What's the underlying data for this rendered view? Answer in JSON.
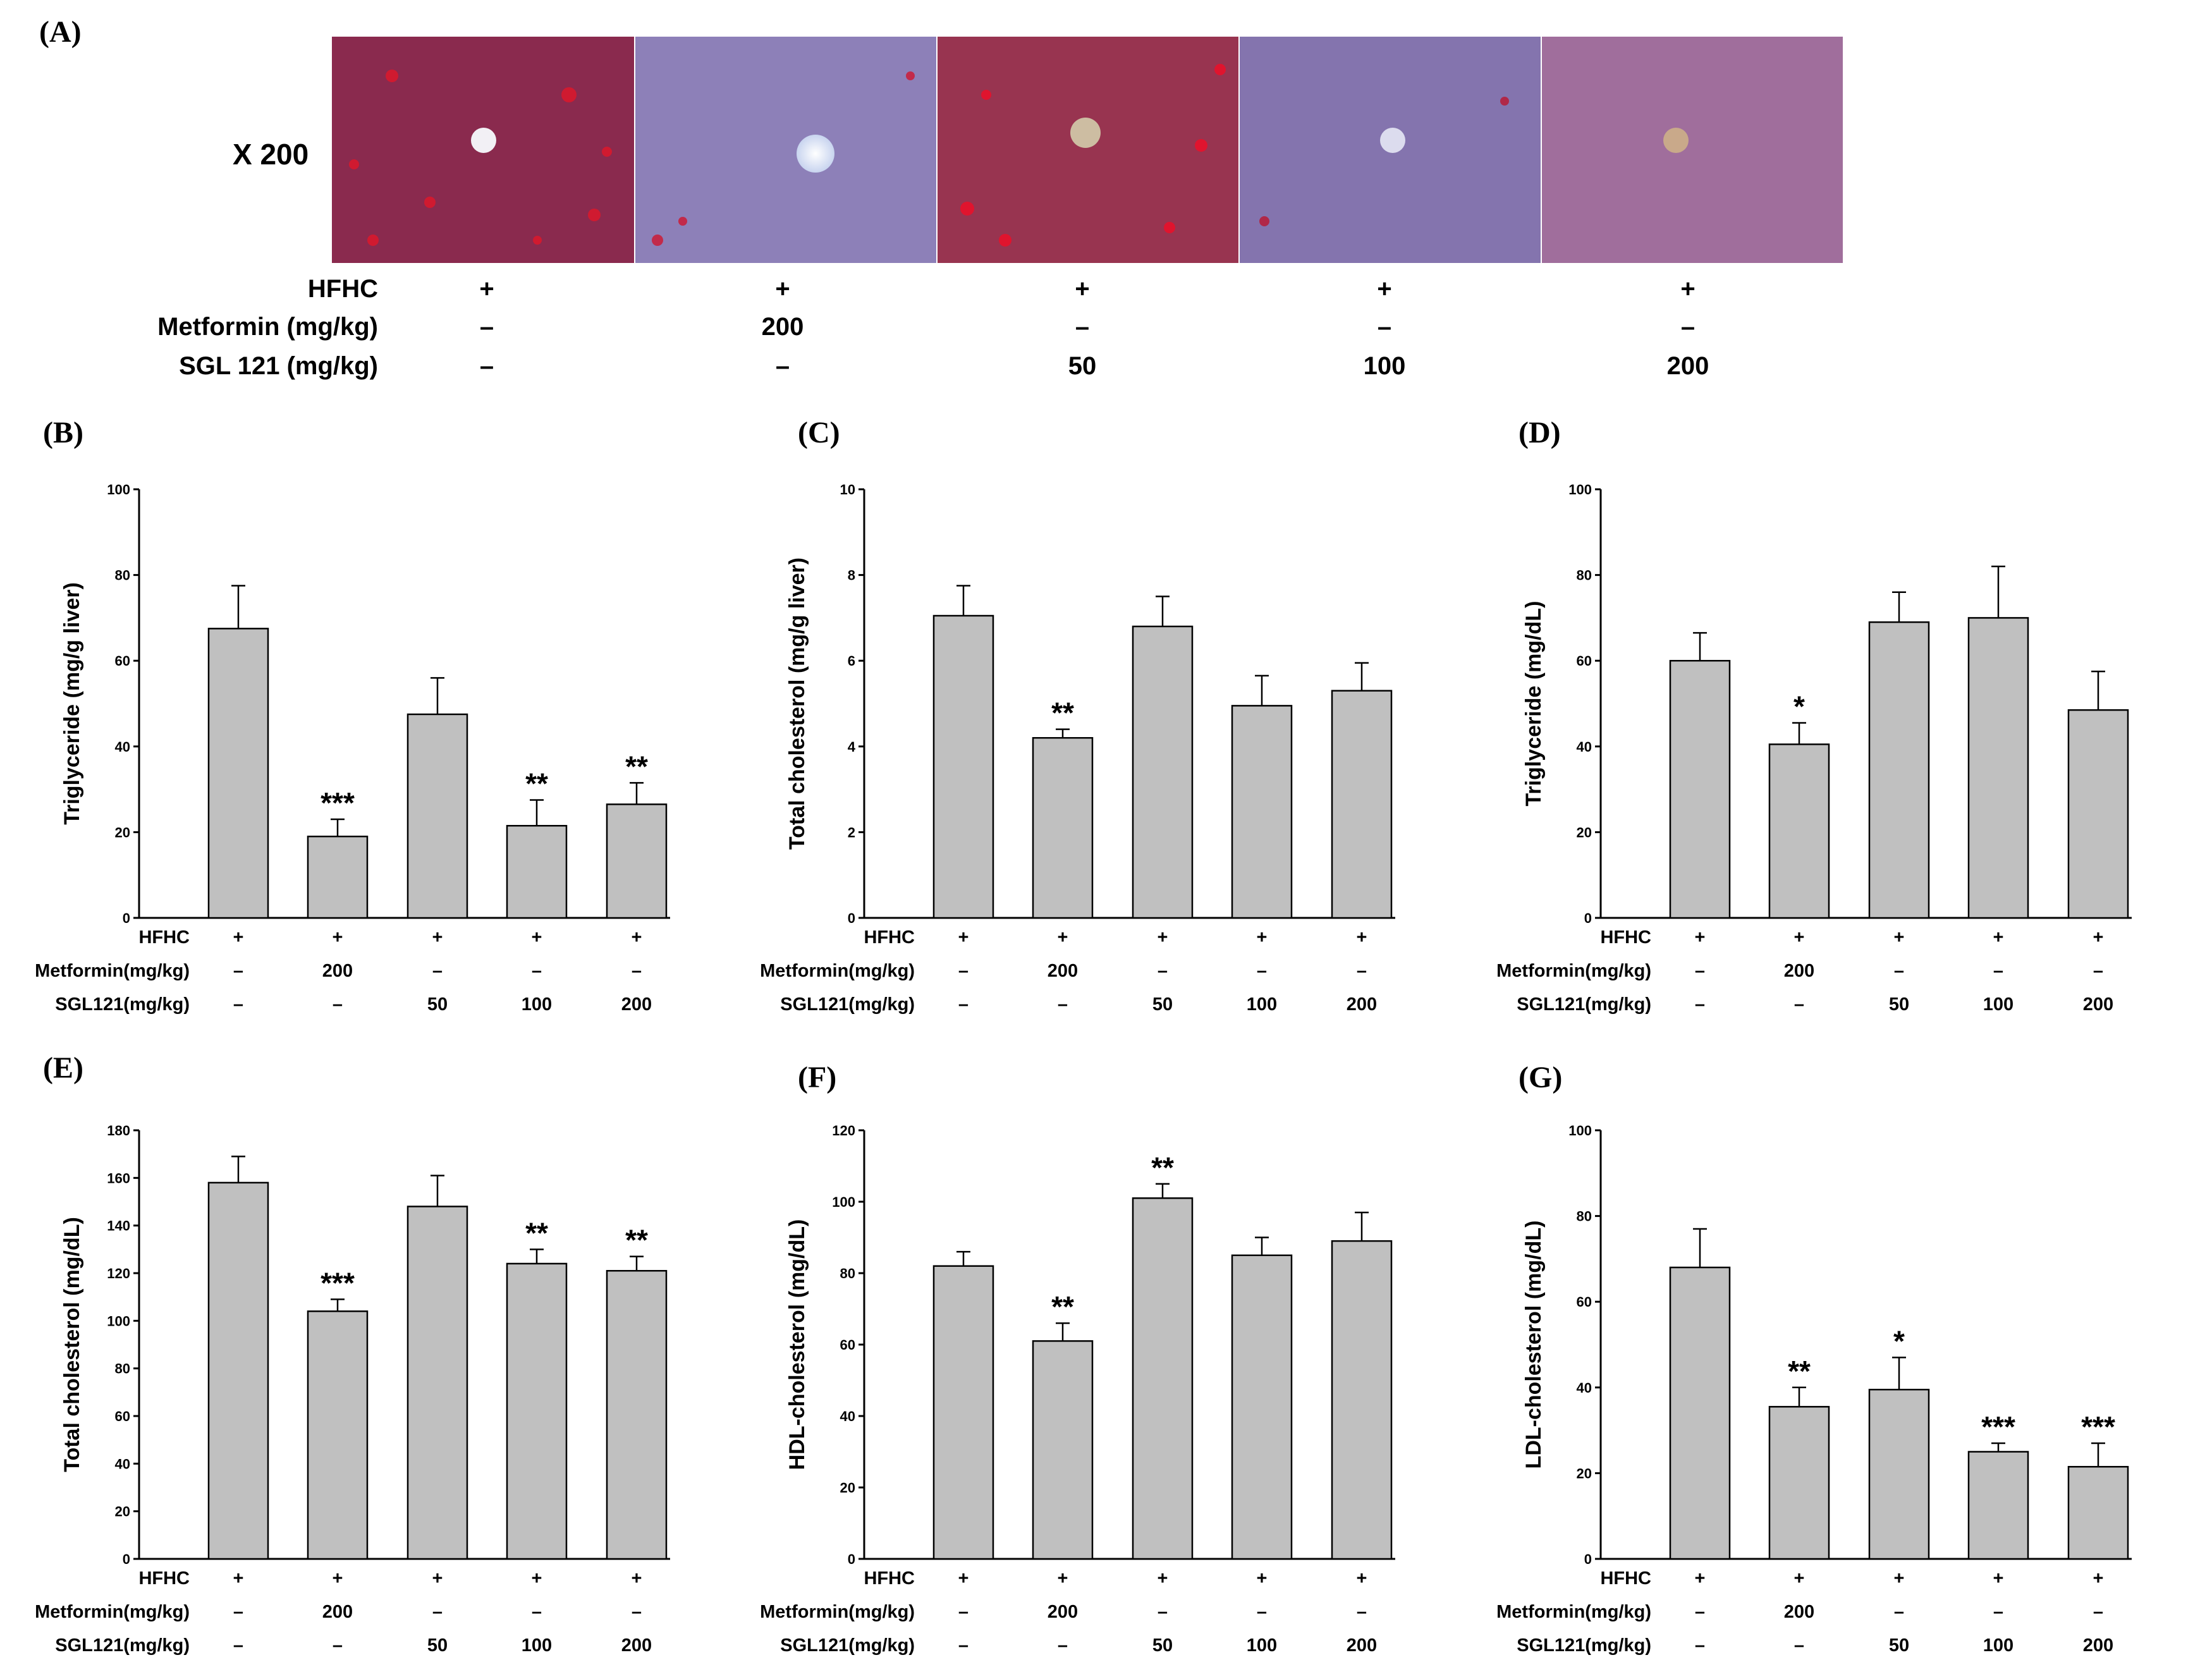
{
  "panel_a": {
    "letter": "(A)",
    "magnification": "X 200",
    "micrograph_count": 5,
    "rows": [
      {
        "label": "HFHC",
        "values": [
          "+",
          "+",
          "+",
          "+",
          "+"
        ]
      },
      {
        "label": "Metformin  (mg/kg)",
        "values": [
          "–",
          "200",
          "–",
          "–",
          "–"
        ]
      },
      {
        "label": "SGL 121  (mg/kg)",
        "values": [
          "–",
          "–",
          "50",
          "100",
          "200"
        ]
      }
    ]
  },
  "treatment_rows": [
    {
      "label": "HFHC",
      "values": [
        "+",
        "+",
        "+",
        "+",
        "+"
      ]
    },
    {
      "label": "Metformin(mg/kg)",
      "values": [
        "–",
        "200",
        "–",
        "–",
        "–"
      ]
    },
    {
      "label": "SGL121(mg/kg)",
      "values": [
        "–",
        "–",
        "50",
        "100",
        "200"
      ]
    }
  ],
  "colors": {
    "bar": "#c0c0c0",
    "bar_stroke": "#000000",
    "axis": "#000000"
  },
  "chart_data": [
    {
      "panel": "(B)",
      "type": "bar",
      "ylabel": "Triglyceride (mg/g liver)",
      "ylim": [
        0,
        100
      ],
      "yticks": [
        0,
        20,
        40,
        60,
        80,
        100
      ],
      "values": [
        67.5,
        19,
        47.5,
        21.5,
        26.5
      ],
      "errors": [
        10,
        4,
        8.5,
        6,
        5
      ],
      "significance": [
        "",
        "***",
        "",
        "**",
        "**"
      ]
    },
    {
      "panel": "(C)",
      "type": "bar",
      "ylabel": "Total cholesterol (mg/g liver)",
      "ylim": [
        0,
        10
      ],
      "yticks": [
        0,
        2,
        4,
        6,
        8,
        10
      ],
      "values": [
        7.05,
        4.2,
        6.8,
        4.95,
        5.3
      ],
      "errors": [
        0.7,
        0.2,
        0.7,
        0.7,
        0.65
      ],
      "significance": [
        "",
        "**",
        "",
        "",
        ""
      ]
    },
    {
      "panel": "(D)",
      "type": "bar",
      "ylabel": "Triglyceride  (mg/dL)",
      "ylim": [
        0,
        100
      ],
      "yticks": [
        0,
        20,
        40,
        60,
        80,
        100
      ],
      "values": [
        60,
        40.5,
        69,
        70,
        48.5
      ],
      "errors": [
        6.5,
        5,
        7,
        12,
        9
      ],
      "significance": [
        "",
        "*",
        "",
        "",
        ""
      ]
    },
    {
      "panel": "(E)",
      "type": "bar",
      "ylabel": "Total cholesterol (mg/dL)",
      "ylim": [
        0,
        180
      ],
      "yticks": [
        0,
        20,
        40,
        60,
        80,
        100,
        120,
        140,
        160,
        180
      ],
      "values": [
        158,
        104,
        148,
        124,
        121
      ],
      "errors": [
        11,
        5,
        13,
        6,
        6
      ],
      "significance": [
        "",
        "***",
        "",
        "**",
        "**"
      ]
    },
    {
      "panel": "(F)",
      "type": "bar",
      "ylabel": "HDL-cholesterol (mg/dL)",
      "ylim": [
        0,
        120
      ],
      "yticks": [
        0,
        20,
        40,
        60,
        80,
        100,
        120
      ],
      "values": [
        82,
        61,
        101,
        85,
        89
      ],
      "errors": [
        4,
        5,
        4,
        5,
        8
      ],
      "significance": [
        "",
        "**",
        "**",
        "",
        ""
      ]
    },
    {
      "panel": "(G)",
      "type": "bar",
      "ylabel": "LDL-cholesterol (mg/dL)",
      "ylim": [
        0,
        100
      ],
      "yticks": [
        0,
        20,
        40,
        60,
        80,
        100
      ],
      "values": [
        68,
        35.5,
        39.5,
        25,
        21.5
      ],
      "errors": [
        9,
        4.5,
        7.5,
        2,
        5.5
      ],
      "significance": [
        "",
        "**",
        "*",
        "***",
        "***"
      ]
    }
  ]
}
